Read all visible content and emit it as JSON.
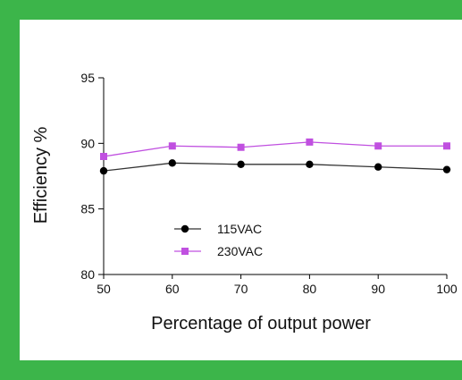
{
  "frame": {
    "border_color": "#3cb54a"
  },
  "chart_data": {
    "type": "line",
    "title": "",
    "xlabel": "Percentage of output power",
    "ylabel": "Efficiency %",
    "x": [
      50,
      60,
      70,
      80,
      90,
      100
    ],
    "xlim": [
      50,
      100
    ],
    "ylim": [
      80,
      95
    ],
    "x_ticks": [
      "50",
      "60",
      "70",
      "80",
      "90",
      "100"
    ],
    "y_ticks": [
      "95",
      "90",
      "85",
      "80"
    ],
    "grid": false,
    "legend_position": "lower-left",
    "series": [
      {
        "name": "115VAC",
        "values": [
          87.9,
          88.5,
          88.4,
          88.4,
          88.2,
          88.0
        ],
        "color": "#000000",
        "line_color": "#333333",
        "marker": "circle"
      },
      {
        "name": "230VAC",
        "values": [
          89.0,
          89.8,
          89.7,
          90.1,
          89.8,
          89.8
        ],
        "color": "#c050e0",
        "line_color": "#c050e0",
        "marker": "square"
      }
    ]
  }
}
